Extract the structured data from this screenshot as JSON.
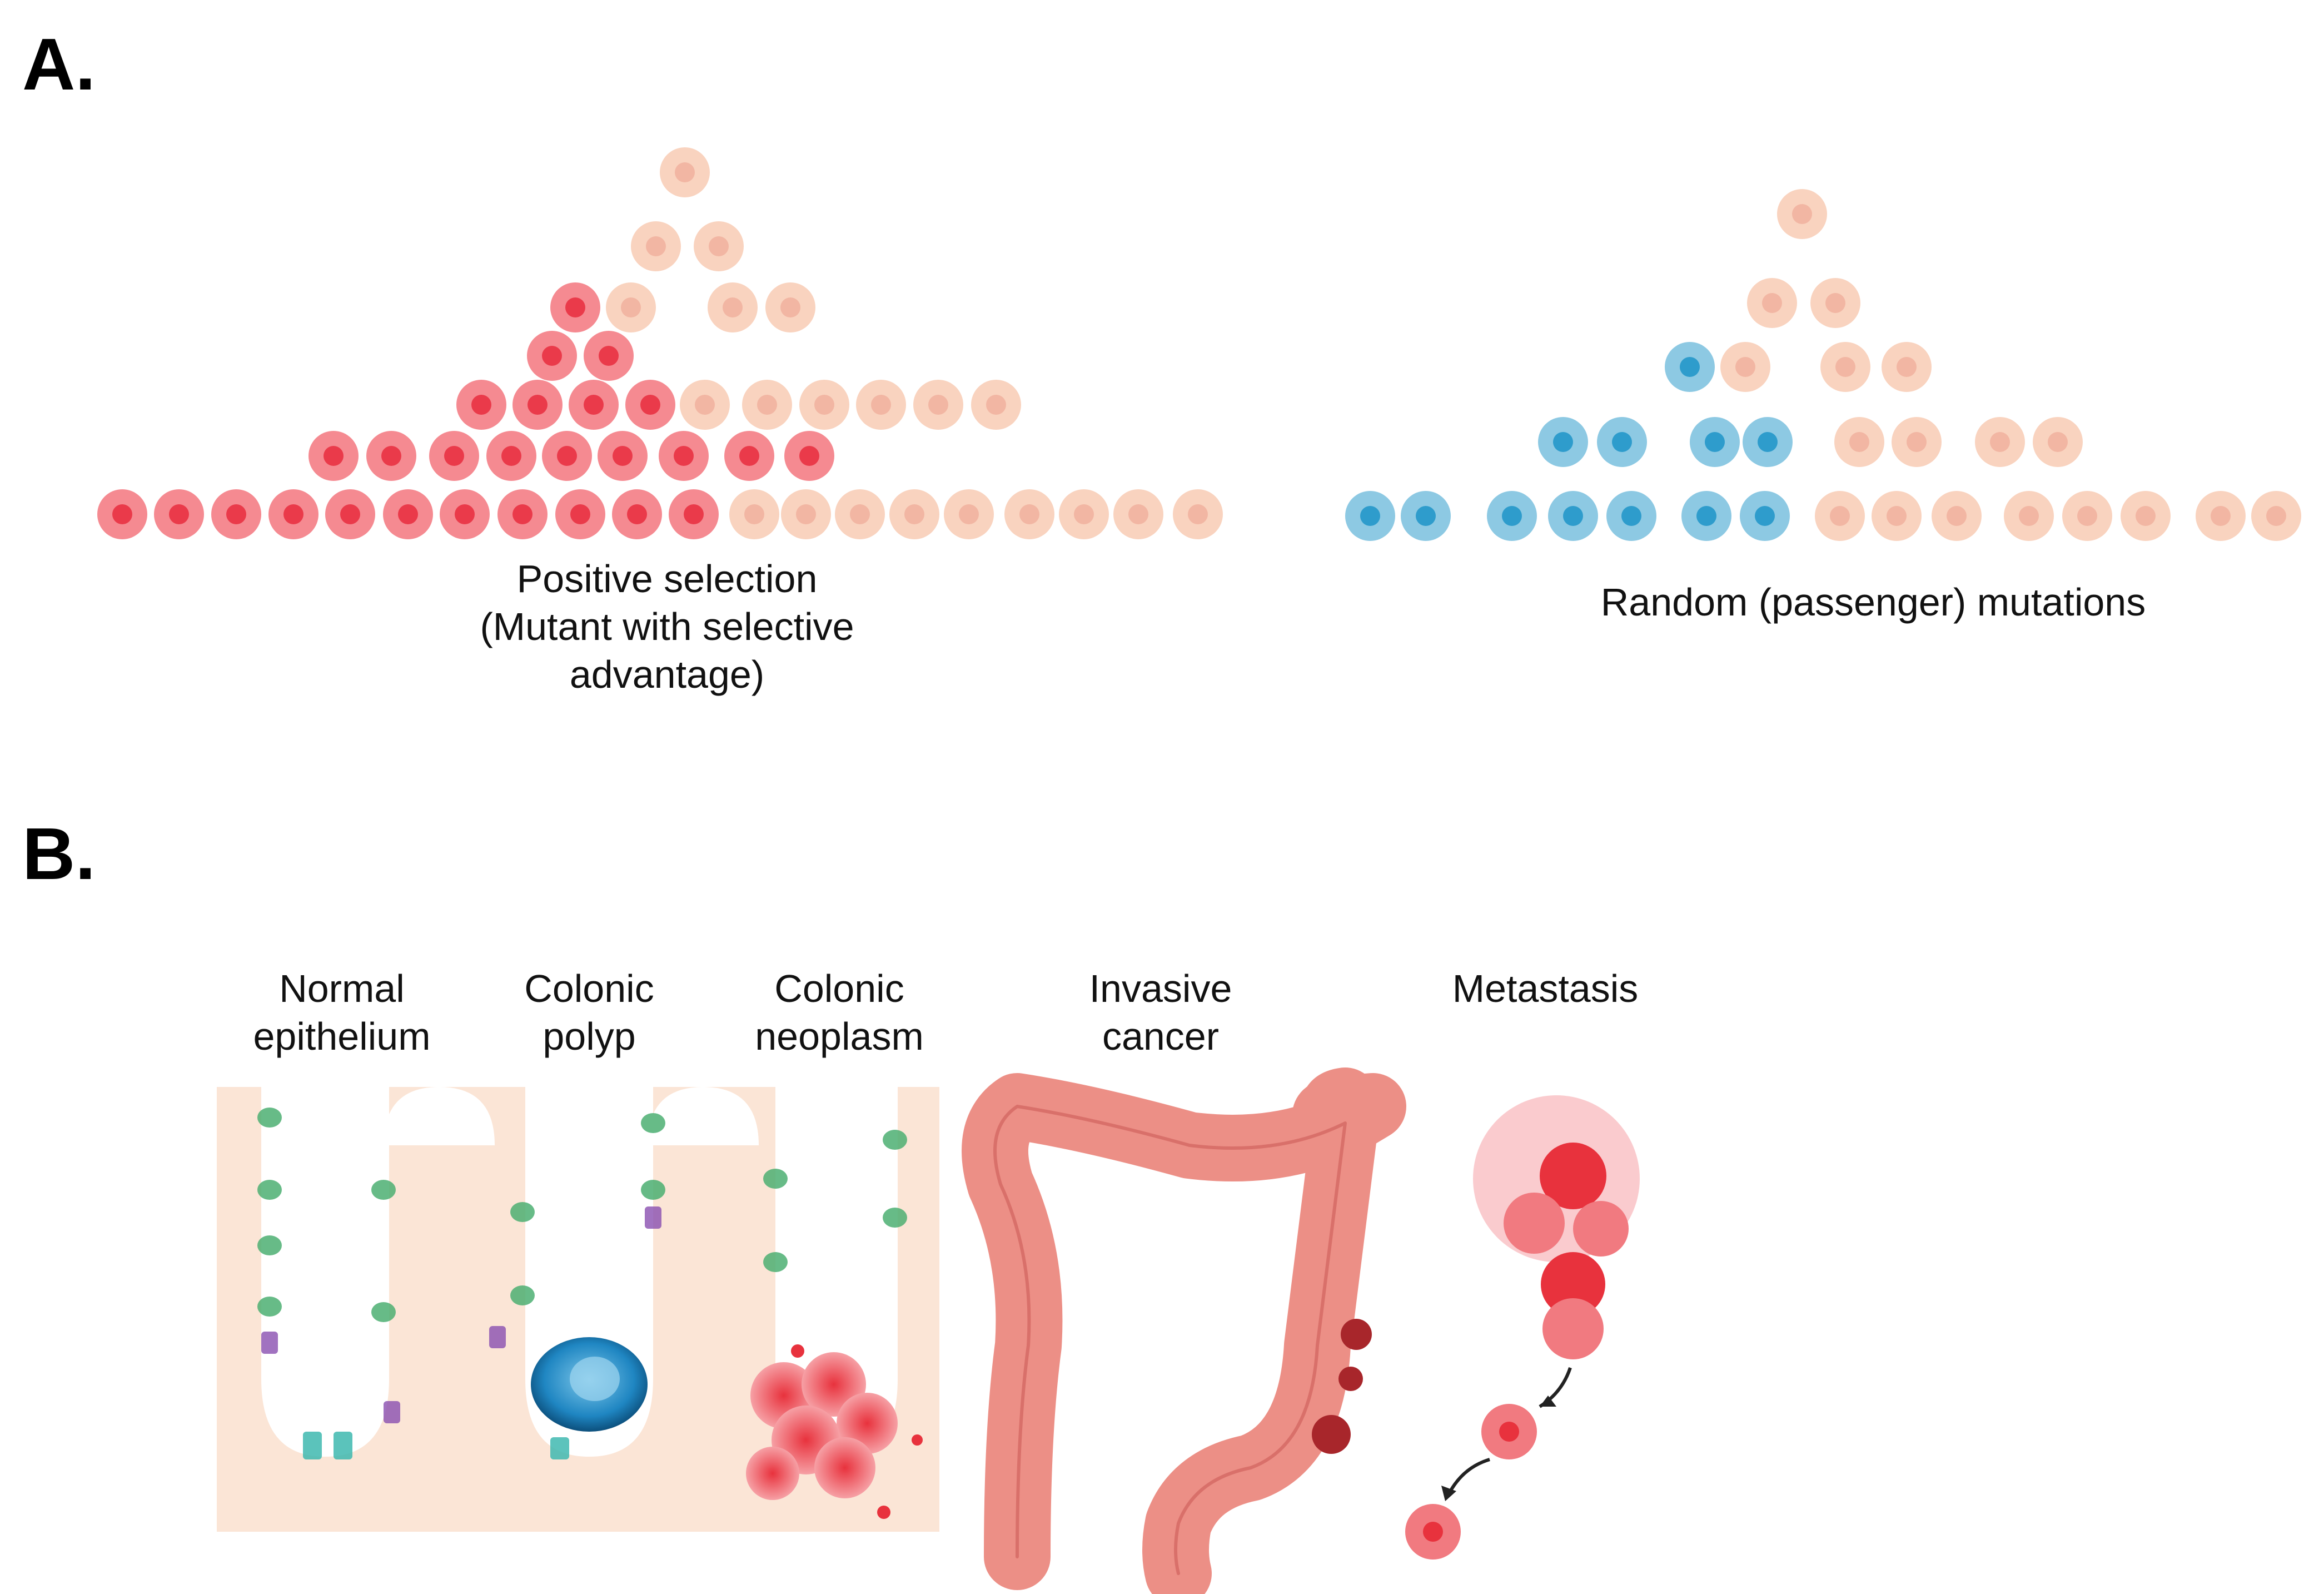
{
  "panel_a": {
    "letter": "A.",
    "positive_selection": {
      "caption_line1": "Positive selection",
      "caption_line2": "(Mutant with selective",
      "caption_line3": "advantage)"
    },
    "random_mutations": {
      "caption": "Random (passenger) mutations"
    }
  },
  "panel_b": {
    "letter": "B.",
    "stages": [
      {
        "line1": "Normal",
        "line2": "epithelium"
      },
      {
        "line1": "Colonic",
        "line2": "polyp"
      },
      {
        "line1": "Colonic",
        "line2": "neoplasm"
      },
      {
        "line1": "Invasive",
        "line2": "cancer"
      },
      {
        "line1": "Metastasis",
        "line2": ""
      }
    ]
  },
  "colors": {
    "normal_cell": "#f9d3bf",
    "normal_nucleus": "#f2b6a3",
    "selected_mutant_cell": "#f58a91",
    "selected_mutant_nucleus": "#ea3a4a",
    "passenger_mutant_cell": "#8dc9e3",
    "passenger_mutant_nucleus": "#2e9ccc",
    "tissue": "#fbe5d6",
    "colon": "#ec8f86",
    "tumor": "#e8323d"
  }
}
